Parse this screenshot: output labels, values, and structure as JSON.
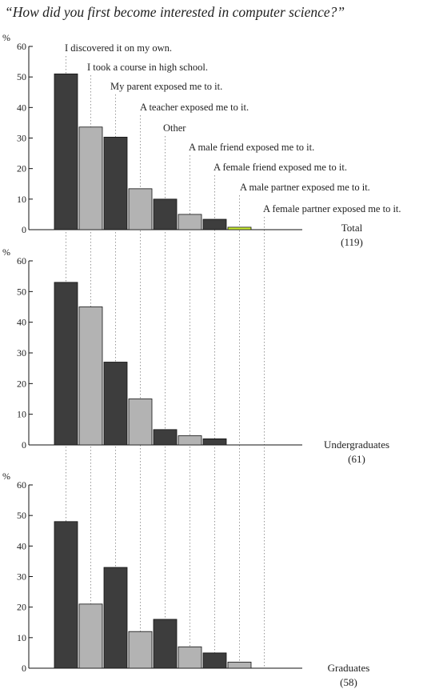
{
  "title": "“How did you first become interested in computer science?”",
  "colors": {
    "dark": "#3d3d3d",
    "light": "#b3b3b3",
    "highlight": "#ccee33",
    "guide": "#9a9a9a",
    "axis": "#111111"
  },
  "chart_data": {
    "type": "bar",
    "categories": [
      "I discovered it on my own.",
      "I took a course in high school.",
      "My parent exposed me to it.",
      "A teacher exposed me to it.",
      "Other",
      "A male friend exposed me to it.",
      "A female friend exposed me to it.",
      "A male partner exposed me to it.",
      "A female partner exposed me to it."
    ],
    "panels": [
      {
        "name": "Total",
        "n": "(119)",
        "values": [
          51,
          33.6,
          30.3,
          13.4,
          10,
          5,
          3.4,
          0.8,
          0
        ]
      },
      {
        "name": "Undergraduates",
        "n": "(61)",
        "values": [
          53,
          45,
          27,
          15,
          5,
          3,
          2,
          0,
          0
        ]
      },
      {
        "name": "Graduates",
        "n": "(58)",
        "values": [
          48,
          21,
          33,
          12,
          16,
          7,
          5,
          2,
          0
        ]
      }
    ],
    "ylabel": "%",
    "ylim": [
      0,
      60
    ],
    "yticks": [
      0,
      10,
      20,
      30,
      40,
      50,
      60
    ]
  }
}
